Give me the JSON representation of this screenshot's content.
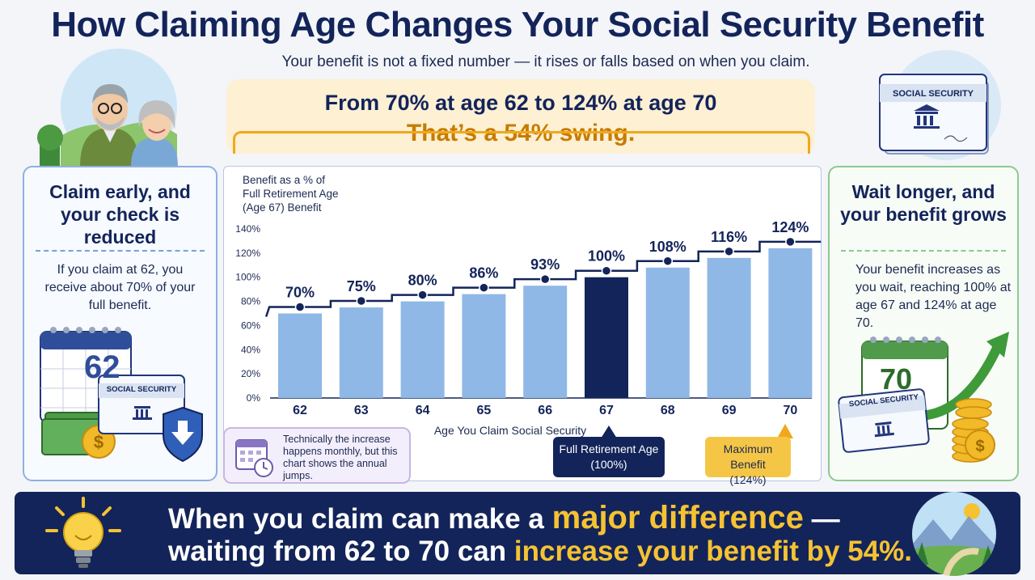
{
  "title": "How Claiming Age Changes Your Social Security Benefit",
  "subtitle": "Your benefit is not a fixed number — it rises or falls based on when you claim.",
  "highlight": {
    "line1": "From 70% at age 62 to 124% at age 70",
    "line2": "That’s a 54% swing."
  },
  "left_panel": {
    "heading": "Claim early, and your check is reduced",
    "body": "If you claim at 62, you receive about 70% of your full benefit.",
    "calendar_number": "62",
    "card_label": "SOCIAL SECURITY"
  },
  "right_panel": {
    "heading": "Wait longer, and your benefit grows",
    "body": "Your benefit increases as you wait, reaching 100% at age 67 and 124% at age 70.",
    "calendar_number": "70",
    "card_label": "SOCIAL SECURITY"
  },
  "top_card_label": "SOCIAL SECURITY",
  "note": "Technically the increase happens monthly, but this chart shows the annual jumps.",
  "fra_callout": {
    "line1": "Full Retirement Age",
    "line2": "(100%)"
  },
  "max_callout": {
    "line1": "Maximum Benefit",
    "line2": "(124%)"
  },
  "banner": {
    "l1_a": "When you claim can make a ",
    "l1_b": "major difference",
    "l1_c": " —",
    "l2_a": "waiting from 62 to 70 can ",
    "l2_b": "increase your benefit by 54%."
  },
  "colors": {
    "navy": "#13245a",
    "bar": "#8fb8e6",
    "bar_highlight": "#13245a",
    "gold": "#f5c232",
    "orange": "#c77b00"
  },
  "chart_data": {
    "type": "bar",
    "ylabel": "Benefit as a % of Full Retirement Age (Age 67) Benefit",
    "ylabel_lines": [
      "Benefit as a % of",
      "Full Retirement Age",
      "(Age 67) Benefit"
    ],
    "xlabel": "Age You Claim Social Security",
    "categories": [
      "62",
      "63",
      "64",
      "65",
      "66",
      "67",
      "68",
      "69",
      "70"
    ],
    "values": [
      70,
      75,
      80,
      86,
      93,
      100,
      108,
      116,
      124
    ],
    "labels": [
      "70%",
      "75%",
      "80%",
      "86%",
      "93%",
      "100%",
      "108%",
      "116%",
      "124%"
    ],
    "yticks": [
      "0%",
      "20%",
      "40%",
      "60%",
      "80%",
      "100%",
      "120%",
      "140%"
    ],
    "ylim": [
      0,
      140
    ],
    "highlight_category": "67",
    "overlay": "step-line",
    "grid": false
  }
}
